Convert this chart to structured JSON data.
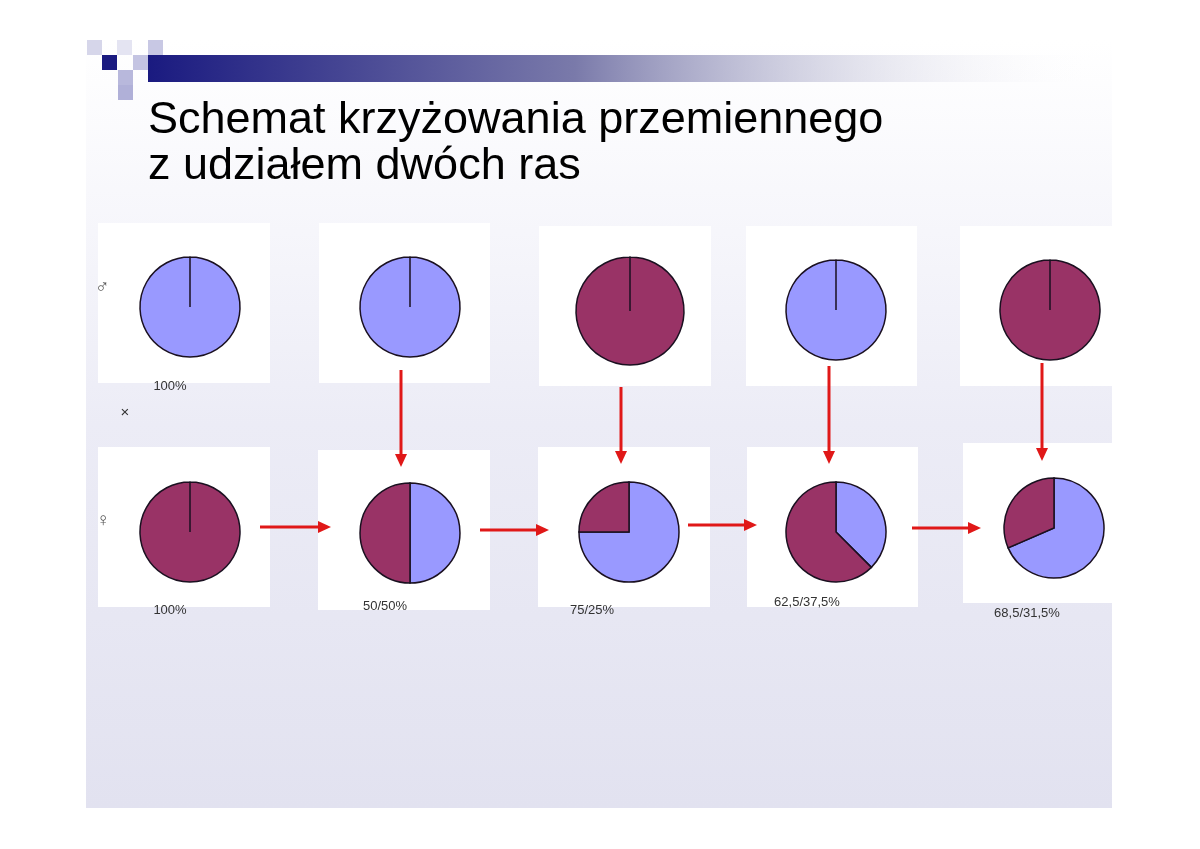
{
  "chart_data": [
    {
      "type": "pie",
      "title": "Schemat krzyżowania przemiennego z udziałem dwóch ras",
      "ylabel": "♂",
      "categories": [
        null
      ],
      "values": [
        100
      ],
      "colors": [
        "#9999ff"
      ],
      "annotations": [
        "100%",
        "×"
      ]
    },
    {
      "type": "pie",
      "categories": [
        null
      ],
      "values": [
        100
      ],
      "colors": [
        "#9999ff"
      ]
    },
    {
      "type": "pie",
      "categories": [
        null
      ],
      "values": [
        100
      ],
      "colors": [
        "#993366"
      ]
    },
    {
      "type": "pie",
      "categories": [
        null
      ],
      "values": [
        100
      ],
      "colors": [
        "#9999ff"
      ]
    },
    {
      "type": "pie",
      "categories": [
        null
      ],
      "values": [
        100
      ],
      "colors": [
        "#993366"
      ]
    },
    {
      "type": "pie",
      "ylabel": "♀",
      "categories": [
        null
      ],
      "values": [
        100
      ],
      "colors": [
        "#993366"
      ],
      "annotations": [
        "100%"
      ]
    },
    {
      "type": "pie",
      "categories": [
        null,
        null
      ],
      "values": [
        50,
        50
      ],
      "colors": [
        "#9999ff",
        "#993366"
      ],
      "annotations": [
        "50/50%"
      ]
    },
    {
      "type": "pie",
      "categories": [
        null,
        null
      ],
      "values": [
        75,
        25
      ],
      "colors": [
        "#9999ff",
        "#993366"
      ],
      "annotations": [
        "75/25%"
      ]
    },
    {
      "type": "pie",
      "categories": [
        null,
        null
      ],
      "values": [
        37.5,
        62.5
      ],
      "colors": [
        "#9999ff",
        "#993366"
      ],
      "annotations": [
        "62,5/37,5%"
      ]
    },
    {
      "type": "pie",
      "categories": [
        null,
        null
      ],
      "values": [
        68.5,
        31.5
      ],
      "colors": [
        "#9999ff",
        "#993366"
      ],
      "annotations": [
        "68,5/31,5%"
      ]
    }
  ]
}
